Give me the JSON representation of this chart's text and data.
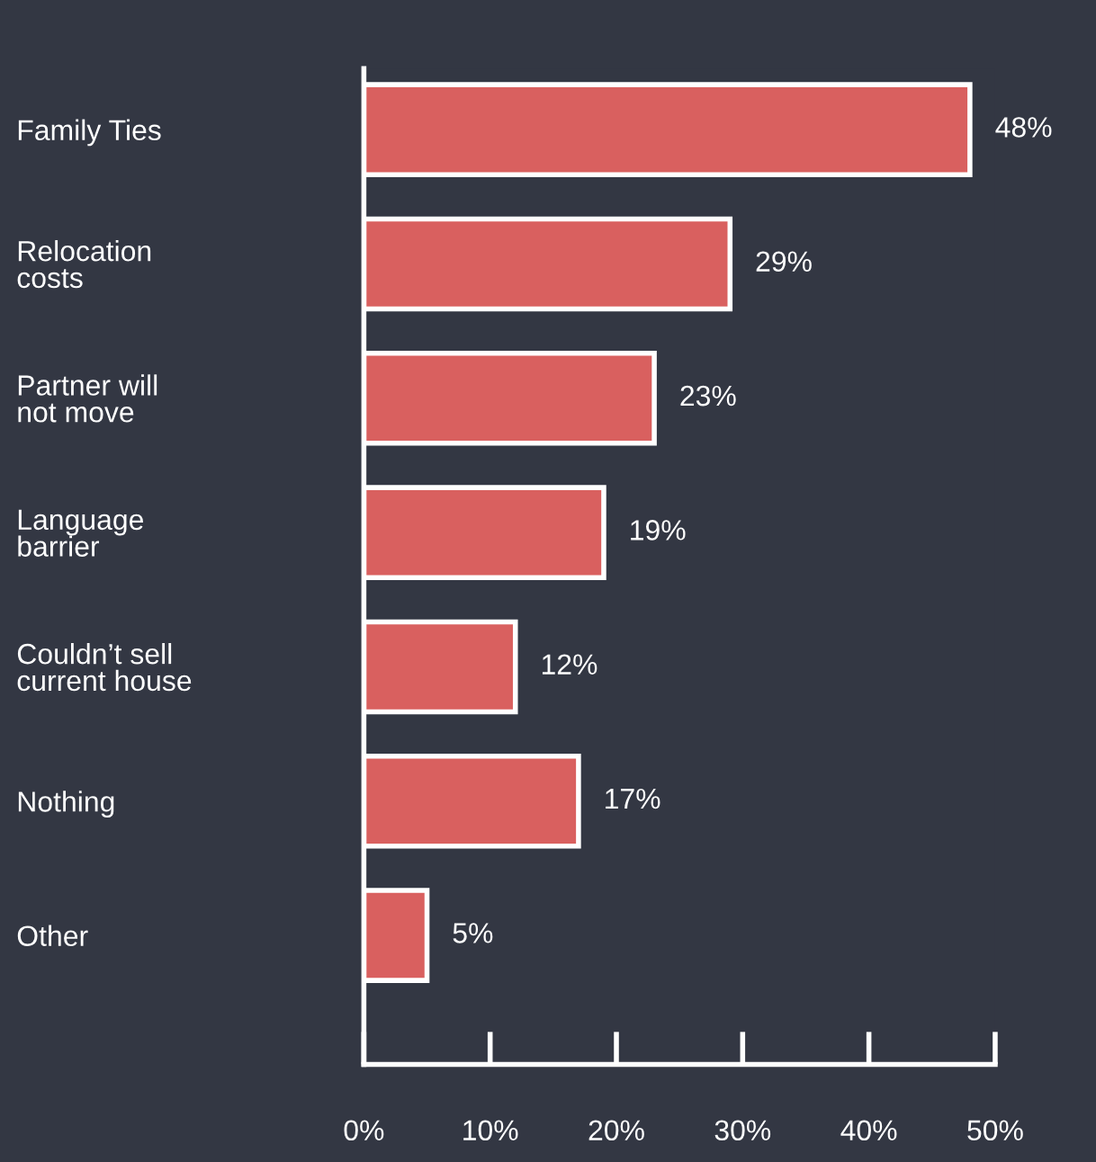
{
  "chart_data": {
    "type": "bar",
    "orientation": "horizontal",
    "categories": [
      "Family Ties",
      "Relocation\ncosts",
      "Partner will\nnot move",
      "Language\nbarrier",
      "Couldn’t sell\ncurrent house",
      "Nothing",
      "Other"
    ],
    "values": [
      48,
      29,
      23,
      19,
      12,
      17,
      5
    ],
    "value_labels": [
      "48%",
      "29%",
      "23%",
      "19%",
      "12%",
      "17%",
      "5%"
    ],
    "color": "#d9605f",
    "xlim": [
      0,
      50
    ],
    "xticks": [
      {
        "value": 0,
        "label": "0%"
      },
      {
        "value": 10,
        "label": "10%"
      },
      {
        "value": 20,
        "label": "20%"
      },
      {
        "value": 30,
        "label": "30%"
      },
      {
        "value": 40,
        "label": "40%"
      },
      {
        "value": 50,
        "label": "50%"
      }
    ],
    "grid": false,
    "legend": false
  }
}
